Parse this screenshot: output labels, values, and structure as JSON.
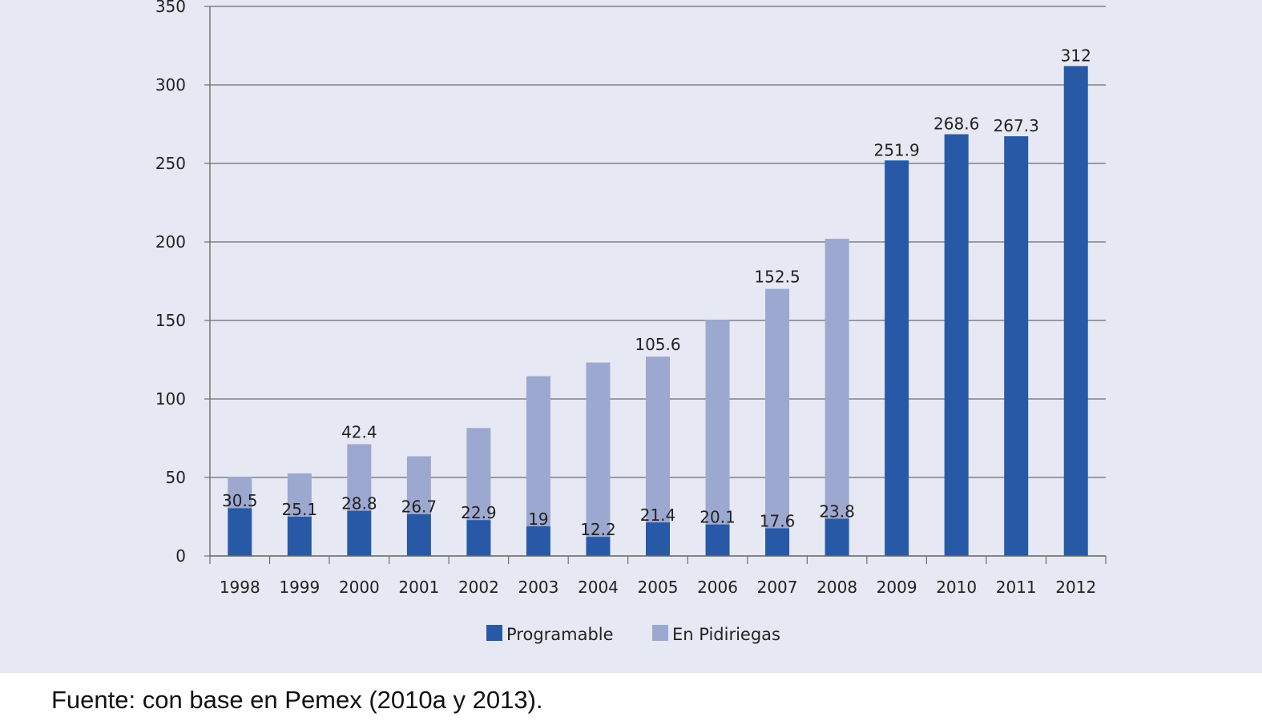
{
  "chart_data": {
    "type": "bar",
    "stacked": true,
    "categories": [
      "1998",
      "1999",
      "2000",
      "2001",
      "2002",
      "2003",
      "2004",
      "2005",
      "2006",
      "2007",
      "2008",
      "2009",
      "2010",
      "2011",
      "2012"
    ],
    "series": [
      {
        "name": "Programable",
        "color": "#2759a6",
        "values": [
          30.5,
          25.1,
          28.8,
          26.7,
          22.9,
          19,
          12.2,
          21.4,
          20.1,
          17.6,
          23.8,
          251.9,
          268.6,
          267.3,
          312
        ]
      },
      {
        "name": "En Pidiriegas",
        "color": "#9da8d1",
        "values": [
          20,
          27.5,
          42.4,
          36.8,
          58.6,
          95.5,
          111,
          105.6,
          130.4,
          152.5,
          178.2,
          0,
          0,
          0,
          0
        ]
      }
    ],
    "data_labels": [
      "30.5",
      "25.1",
      "28.8",
      "26.7",
      "22.9",
      "19",
      "12.2",
      "21.4",
      "20.1",
      "17.6",
      "23.8",
      "251.9",
      "268.6",
      "267.3",
      "312"
    ],
    "pidiriegas_labels": [
      {
        "category": "2000",
        "text": "42.4"
      },
      {
        "category": "2005",
        "text": "105.6"
      },
      {
        "category": "2007",
        "text": "152.5"
      }
    ],
    "y_ticks": [
      "0",
      "50",
      "100",
      "150",
      "200",
      "250",
      "300",
      "350"
    ],
    "ylim": [
      0,
      350
    ],
    "grid": true,
    "legend": "bottom-center",
    "title": "",
    "xlabel": "",
    "ylabel": ""
  },
  "source_note": "Fuente: con base en Pemex (2010a y 2013)."
}
